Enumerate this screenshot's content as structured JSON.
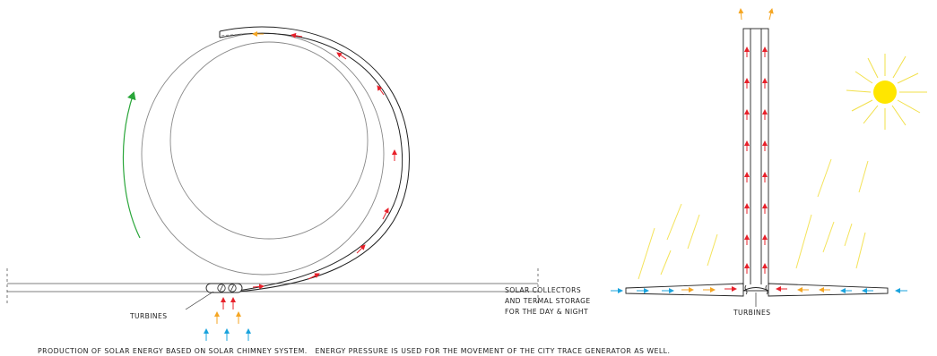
{
  "labels": {
    "turbines_left": "TURBINES",
    "turbines_right": "TURBINES",
    "collectors_line1": "SOLAR COLLECTORS",
    "collectors_line2": "AND TERMAL STORAGE",
    "collectors_line3": "FOR THE DAY & NIGHT"
  },
  "caption": "PRODUCTION OF SOLAR ENERGY BASED ON SOLAR CHIMNEY SYSTEM.   ENERGY PRESSURE IS USED FOR THE MOVEMENT OF THE CITY TRACE GENERATOR AS WELL.",
  "colors": {
    "hot_air": "#e8202a",
    "warm_air": "#f5a623",
    "cold_air": "#1aa3dd",
    "rotation": "#2aa63a",
    "sun": "#ffe600",
    "rays": "#f2e04a",
    "rain": "#f4e35a",
    "stroke": "#333333",
    "circle": "#888888"
  }
}
